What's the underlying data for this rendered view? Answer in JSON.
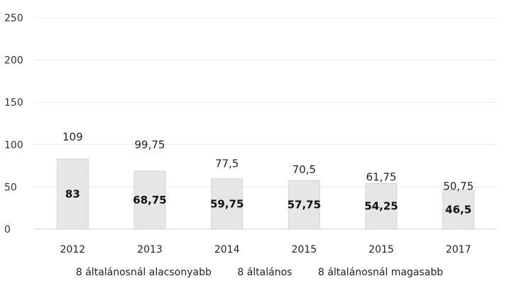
{
  "chart_data": {
    "type": "bar",
    "categories": [
      "2012",
      "2013",
      "2014",
      "2015",
      "2015",
      "2017"
    ],
    "series": [
      {
        "name": "8 általánosnál alacsonyabb",
        "values": [
          83,
          68.75,
          59.75,
          57.75,
          54.25,
          46.5
        ],
        "color": "#e6e6e6"
      },
      {
        "name": "8 általános",
        "values": [
          null,
          null,
          null,
          null,
          null,
          null
        ],
        "color": "#e6e6e6"
      },
      {
        "name": "8 általánosnál magasabb",
        "values": [
          109,
          99.75,
          77.5,
          70.5,
          61.75,
          50.75
        ],
        "color": "#ffffff"
      }
    ],
    "bar_labels": [
      "83",
      "68,75",
      "59,75",
      "57,75",
      "54,25",
      "46,5"
    ],
    "top_labels": [
      "109",
      "99,75",
      "77,5",
      "70,5",
      "61,75",
      "50,75"
    ],
    "ylim": [
      0,
      250
    ],
    "yticks": [
      "0",
      "50",
      "100",
      "150",
      "200",
      "250"
    ],
    "grid": true,
    "legend_position": "bottom"
  }
}
